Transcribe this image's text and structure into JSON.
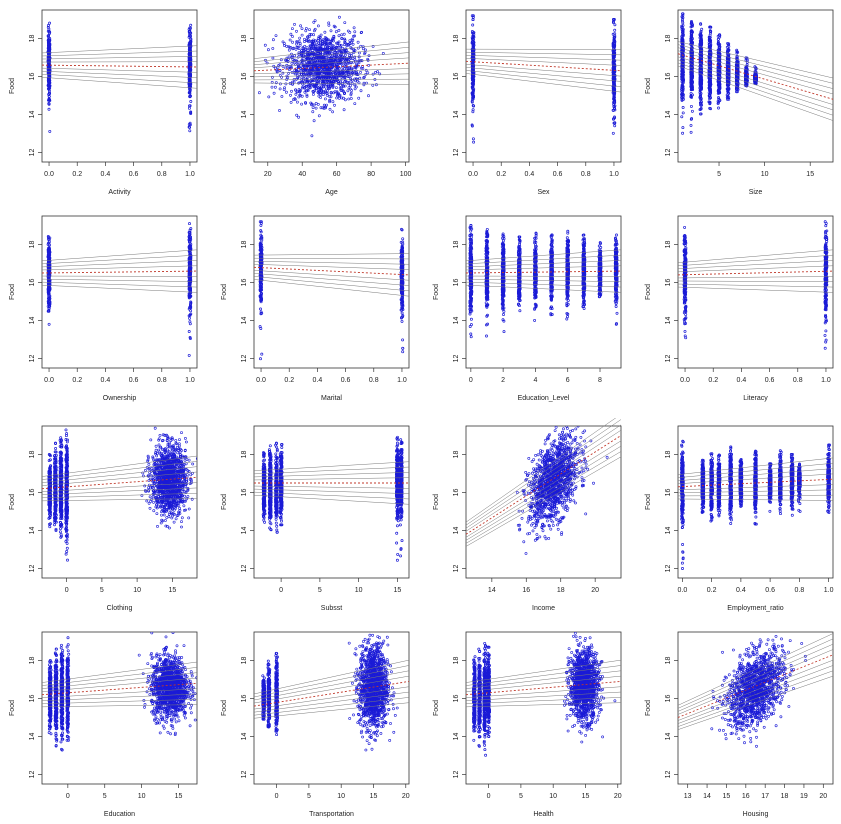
{
  "chart_data": [
    {
      "type": "scatter",
      "xlabel": "Activity",
      "ylabel": "Food",
      "xlim": [
        -0.05,
        1.05
      ],
      "ylim": [
        11.5,
        19.5
      ],
      "xticks": [
        "0.0",
        "0.2",
        "0.4",
        "0.6",
        "0.8",
        "1.0"
      ],
      "xtick_values": [
        0,
        0.2,
        0.4,
        0.6,
        0.8,
        1.0
      ],
      "yticks": [
        "12",
        "14",
        "16",
        "18"
      ],
      "ytick_values": [
        12,
        14,
        16,
        18
      ],
      "clusters": [
        {
          "x": 0,
          "y": 16.6,
          "ymin": 11.9,
          "ymax": 18.9,
          "shape": "column"
        },
        {
          "x": 1,
          "y": 16.5,
          "ymin": 12.2,
          "ymax": 18.7,
          "shape": "column"
        }
      ],
      "fit_left": 16.6,
      "fit_right": 16.5
    },
    {
      "type": "scatter",
      "xlabel": "Age",
      "ylabel": "Food",
      "xlim": [
        12,
        102
      ],
      "ylim": [
        11.5,
        19.5
      ],
      "xticks": [
        "20",
        "40",
        "60",
        "80",
        "100"
      ],
      "xtick_values": [
        20,
        40,
        60,
        80,
        100
      ],
      "yticks": [
        "12",
        "14",
        "16",
        "18"
      ],
      "ytick_values": [
        12,
        14,
        16,
        18
      ],
      "clusters": [
        {
          "x": 52,
          "y": 16.5,
          "xspread": 20,
          "yspread": 0.9,
          "shape": "blob"
        }
      ],
      "fit_left": 16.3,
      "fit_right": 16.7
    },
    {
      "type": "scatter",
      "xlabel": "Sex",
      "ylabel": "Food",
      "xlim": [
        -0.05,
        1.05
      ],
      "ylim": [
        11.5,
        19.5
      ],
      "xticks": [
        "0.0",
        "0.2",
        "0.4",
        "0.6",
        "0.8",
        "1.0"
      ],
      "xtick_values": [
        0,
        0.2,
        0.4,
        0.6,
        0.8,
        1.0
      ],
      "yticks": [
        "12",
        "14",
        "16",
        "18"
      ],
      "ytick_values": [
        12,
        14,
        16,
        18
      ],
      "clusters": [
        {
          "x": 0,
          "y": 16.7,
          "ymin": 12.4,
          "ymax": 19.2,
          "shape": "column"
        },
        {
          "x": 1,
          "y": 16.3,
          "ymin": 11.8,
          "ymax": 19.0,
          "shape": "column"
        }
      ],
      "fit_left": 16.8,
      "fit_right": 16.3
    },
    {
      "type": "scatter",
      "xlabel": "Size",
      "ylabel": "Food",
      "xlim": [
        0.5,
        17.5
      ],
      "ylim": [
        11.5,
        19.5
      ],
      "xticks": [
        "5",
        "10",
        "15"
      ],
      "xtick_values": [
        5,
        10,
        15
      ],
      "yticks": [
        "12",
        "14",
        "16",
        "18"
      ],
      "ytick_values": [
        12,
        14,
        16,
        18
      ],
      "clusters": [
        {
          "x": 1,
          "y": 16.8,
          "ymin": 12.5,
          "ymax": 19.3,
          "shape": "column"
        },
        {
          "x": 2,
          "y": 16.7,
          "ymin": 13,
          "ymax": 19.1,
          "shape": "column"
        },
        {
          "x": 3,
          "y": 16.6,
          "ymin": 13.2,
          "ymax": 18.9,
          "shape": "column"
        },
        {
          "x": 4,
          "y": 16.5,
          "ymin": 13.8,
          "ymax": 18.6,
          "shape": "column"
        },
        {
          "x": 5,
          "y": 16.3,
          "ymin": 14.2,
          "ymax": 18.2,
          "shape": "column"
        },
        {
          "x": 6,
          "y": 16.2,
          "ymin": 14.8,
          "ymax": 17.8,
          "shape": "column"
        },
        {
          "x": 7,
          "y": 16.1,
          "ymin": 15.2,
          "ymax": 17.4,
          "shape": "column"
        },
        {
          "x": 8,
          "y": 16.0,
          "ymin": 15.5,
          "ymax": 17.0,
          "shape": "column"
        },
        {
          "x": 9,
          "y": 15.9,
          "ymin": 15.6,
          "ymax": 16.6,
          "shape": "column"
        }
      ],
      "fit_left": 17.2,
      "fit_right": 14.8
    },
    {
      "type": "scatter",
      "xlabel": "Ownership",
      "ylabel": "Food",
      "xlim": [
        -0.05,
        1.05
      ],
      "ylim": [
        11.5,
        19.5
      ],
      "xticks": [
        "0.0",
        "0.2",
        "0.4",
        "0.6",
        "0.8",
        "1.0"
      ],
      "xtick_values": [
        0,
        0.2,
        0.4,
        0.6,
        0.8,
        1.0
      ],
      "yticks": [
        "12",
        "14",
        "16",
        "18"
      ],
      "ytick_values": [
        12,
        14,
        16,
        18
      ],
      "clusters": [
        {
          "x": 0,
          "y": 16.5,
          "ymin": 13.8,
          "ymax": 18.6,
          "shape": "column"
        },
        {
          "x": 1,
          "y": 16.6,
          "ymin": 11.9,
          "ymax": 19.1,
          "shape": "column"
        }
      ],
      "fit_left": 16.5,
      "fit_right": 16.6
    },
    {
      "type": "scatter",
      "xlabel": "Marital",
      "ylabel": "Food",
      "xlim": [
        -0.05,
        1.05
      ],
      "ylim": [
        11.5,
        19.5
      ],
      "xticks": [
        "0.0",
        "0.2",
        "0.4",
        "0.6",
        "0.8",
        "1.0"
      ],
      "xtick_values": [
        0,
        0.2,
        0.4,
        0.6,
        0.8,
        1.0
      ],
      "yticks": [
        "12",
        "14",
        "16",
        "18"
      ],
      "ytick_values": [
        12,
        14,
        16,
        18
      ],
      "clusters": [
        {
          "x": 0,
          "y": 16.8,
          "ymin": 11.8,
          "ymax": 19.2,
          "shape": "column"
        },
        {
          "x": 1,
          "y": 16.4,
          "ymin": 12.2,
          "ymax": 18.8,
          "shape": "column"
        }
      ],
      "fit_left": 16.8,
      "fit_right": 16.4
    },
    {
      "type": "scatter",
      "xlabel": "Education_Level",
      "ylabel": "Food",
      "xlim": [
        -0.3,
        9.3
      ],
      "ylim": [
        11.5,
        19.5
      ],
      "xticks": [
        "0",
        "2",
        "4",
        "6",
        "8"
      ],
      "xtick_values": [
        0,
        2,
        4,
        6,
        8
      ],
      "yticks": [
        "12",
        "14",
        "16",
        "18"
      ],
      "ytick_values": [
        12,
        14,
        16,
        18
      ],
      "clusters": [
        {
          "x": 0,
          "y": 16.5,
          "ymin": 12.1,
          "ymax": 19.0,
          "shape": "column"
        },
        {
          "x": 1,
          "y": 16.5,
          "ymin": 13,
          "ymax": 18.9,
          "shape": "column"
        },
        {
          "x": 2,
          "y": 16.5,
          "ymin": 12.3,
          "ymax": 18.7,
          "shape": "column"
        },
        {
          "x": 3,
          "y": 16.5,
          "ymin": 14.5,
          "ymax": 18.4,
          "shape": "column"
        },
        {
          "x": 4,
          "y": 16.5,
          "ymin": 14,
          "ymax": 18.6,
          "shape": "column"
        },
        {
          "x": 5,
          "y": 16.5,
          "ymin": 14.3,
          "ymax": 18.5,
          "shape": "column"
        },
        {
          "x": 6,
          "y": 16.6,
          "ymin": 13.8,
          "ymax": 18.7,
          "shape": "column"
        },
        {
          "x": 7,
          "y": 16.6,
          "ymin": 14.3,
          "ymax": 18.6,
          "shape": "column"
        },
        {
          "x": 8,
          "y": 16.6,
          "ymin": 14.8,
          "ymax": 18.1,
          "shape": "column"
        },
        {
          "x": 9,
          "y": 16.6,
          "ymin": 13.8,
          "ymax": 18.5,
          "shape": "column"
        }
      ],
      "fit_left": 16.5,
      "fit_right": 16.6
    },
    {
      "type": "scatter",
      "xlabel": "Literacy",
      "ylabel": "Food",
      "xlim": [
        -0.05,
        1.05
      ],
      "ylim": [
        11.5,
        19.5
      ],
      "xticks": [
        "0.0",
        "0.2",
        "0.4",
        "0.6",
        "0.8",
        "1.0"
      ],
      "xtick_values": [
        0,
        0.2,
        0.4,
        0.6,
        0.8,
        1.0
      ],
      "yticks": [
        "12",
        "14",
        "16",
        "18"
      ],
      "ytick_values": [
        12,
        14,
        16,
        18
      ],
      "clusters": [
        {
          "x": 0,
          "y": 16.4,
          "ymin": 12.8,
          "ymax": 18.9,
          "shape": "column"
        },
        {
          "x": 1,
          "y": 16.6,
          "ymin": 12.0,
          "ymax": 19.2,
          "shape": "column"
        }
      ],
      "fit_left": 16.4,
      "fit_right": 16.6
    },
    {
      "type": "scatter",
      "xlabel": "Clothing",
      "ylabel": "Food",
      "xlim": [
        -3.5,
        18.5
      ],
      "ylim": [
        11.5,
        19.5
      ],
      "xticks": [
        "0",
        "5",
        "10",
        "15"
      ],
      "xtick_values": [
        0,
        5,
        10,
        15
      ],
      "yticks": [
        "12",
        "14",
        "16",
        "18"
      ],
      "ytick_values": [
        12,
        14,
        16,
        18
      ],
      "clusters": [
        {
          "x": -2.4,
          "y": 16.1,
          "ymin": 14.2,
          "ymax": 18.0,
          "shape": "column"
        },
        {
          "x": -1.6,
          "y": 16.2,
          "ymin": 14,
          "ymax": 18.6,
          "shape": "column"
        },
        {
          "x": -0.8,
          "y": 16.2,
          "ymin": 13.5,
          "ymax": 18.9,
          "shape": "column"
        },
        {
          "x": 0,
          "y": 16.3,
          "ymin": 12.0,
          "ymax": 19.3,
          "shape": "column"
        },
        {
          "x": 14.5,
          "y": 16.7,
          "xspread": 2.2,
          "yspread": 0.9,
          "shape": "blob"
        }
      ],
      "fit_left": 16.2,
      "fit_right": 16.8
    },
    {
      "type": "scatter",
      "xlabel": "Subsst",
      "ylabel": "Food",
      "xlim": [
        -3.5,
        16.5
      ],
      "ylim": [
        11.5,
        19.5
      ],
      "xticks": [
        "0",
        "5",
        "10",
        "15"
      ],
      "xtick_values": [
        0,
        5,
        10,
        15
      ],
      "yticks": [
        "12",
        "14",
        "16",
        "18"
      ],
      "ytick_values": [
        12,
        14,
        16,
        18
      ],
      "clusters": [
        {
          "x": -2.2,
          "y": 16.2,
          "ymin": 14.3,
          "ymax": 18.1,
          "shape": "column"
        },
        {
          "x": -1.4,
          "y": 16.3,
          "ymin": 14,
          "ymax": 18.5,
          "shape": "column"
        },
        {
          "x": -0.6,
          "y": 16.3,
          "ymin": 13.8,
          "ymax": 18.6,
          "shape": "column"
        },
        {
          "x": 0,
          "y": 16.4,
          "ymin": 14.3,
          "ymax": 18.8,
          "shape": "column"
        },
        {
          "x": 15,
          "y": 16.6,
          "ymin": 11.9,
          "ymax": 19.0,
          "shape": "column"
        },
        {
          "x": 15.5,
          "y": 16.5,
          "ymin": 12.2,
          "ymax": 18.8,
          "shape": "column"
        }
      ],
      "fit_left": 16.5,
      "fit_right": 16.5
    },
    {
      "type": "scatter",
      "xlabel": "Income",
      "ylabel": "Food",
      "xlim": [
        12.5,
        21.5
      ],
      "ylim": [
        11.5,
        19.5
      ],
      "xticks": [
        "14",
        "16",
        "18",
        "20"
      ],
      "xtick_values": [
        14,
        16,
        18,
        20
      ],
      "yticks": [
        "12",
        "14",
        "16",
        "18"
      ],
      "ytick_values": [
        12,
        14,
        16,
        18
      ],
      "clusters": [
        {
          "x": 17.6,
          "y": 16.6,
          "xspread": 1.3,
          "yspread": 1.0,
          "shape": "blob",
          "tilt": 0.7
        }
      ],
      "fit_left": 13.8,
      "fit_right": 19.0
    },
    {
      "type": "scatter",
      "xlabel": "Employment_ratio",
      "ylabel": "Food",
      "xlim": [
        -0.03,
        1.03
      ],
      "ylim": [
        11.5,
        19.5
      ],
      "xticks": [
        "0.0",
        "0.2",
        "0.4",
        "0.6",
        "0.8",
        "1.0"
      ],
      "xtick_values": [
        0,
        0.2,
        0.4,
        0.6,
        0.8,
        1.0
      ],
      "yticks": [
        "12",
        "14",
        "16",
        "18"
      ],
      "ytick_values": [
        12,
        14,
        16,
        18
      ],
      "clusters": [
        {
          "x": 0,
          "y": 16.3,
          "ymin": 12.0,
          "ymax": 18.7,
          "shape": "column"
        },
        {
          "x": 0.14,
          "y": 16.4,
          "ymin": 14.9,
          "ymax": 17.7,
          "shape": "column"
        },
        {
          "x": 0.2,
          "y": 16.4,
          "ymin": 14.5,
          "ymax": 18.1,
          "shape": "column"
        },
        {
          "x": 0.25,
          "y": 16.4,
          "ymin": 14.6,
          "ymax": 18.0,
          "shape": "column"
        },
        {
          "x": 0.33,
          "y": 16.5,
          "ymin": 14.3,
          "ymax": 18.4,
          "shape": "column"
        },
        {
          "x": 0.4,
          "y": 16.5,
          "ymin": 14.9,
          "ymax": 17.8,
          "shape": "column"
        },
        {
          "x": 0.5,
          "y": 16.5,
          "ymin": 14.2,
          "ymax": 18.3,
          "shape": "column"
        },
        {
          "x": 0.6,
          "y": 16.5,
          "ymin": 15,
          "ymax": 17.6,
          "shape": "column"
        },
        {
          "x": 0.67,
          "y": 16.6,
          "ymin": 14.4,
          "ymax": 18.2,
          "shape": "column"
        },
        {
          "x": 0.75,
          "y": 16.6,
          "ymin": 14.8,
          "ymax": 18.0,
          "shape": "column"
        },
        {
          "x": 0.8,
          "y": 16.6,
          "ymin": 15,
          "ymax": 17.5,
          "shape": "column"
        },
        {
          "x": 1,
          "y": 16.7,
          "ymin": 14.6,
          "ymax": 18.5,
          "shape": "column"
        }
      ],
      "fit_left": 16.3,
      "fit_right": 16.7
    },
    {
      "type": "scatter",
      "xlabel": "Education",
      "ylabel": "Food",
      "xlim": [
        -3.5,
        17.5
      ],
      "ylim": [
        11.5,
        19.5
      ],
      "xticks": [
        "0",
        "5",
        "10",
        "15"
      ],
      "xtick_values": [
        0,
        5,
        10,
        15
      ],
      "yticks": [
        "12",
        "14",
        "16",
        "18"
      ],
      "ytick_values": [
        12,
        14,
        16,
        18
      ],
      "clusters": [
        {
          "x": -2.4,
          "y": 16.1,
          "ymin": 14,
          "ymax": 18.0,
          "shape": "column"
        },
        {
          "x": -1.6,
          "y": 16.2,
          "ymin": 13.5,
          "ymax": 18.6,
          "shape": "column"
        },
        {
          "x": -0.8,
          "y": 16.2,
          "ymin": 12.2,
          "ymax": 18.8,
          "shape": "column"
        },
        {
          "x": 0,
          "y": 16.3,
          "ymin": 13.8,
          "ymax": 19.2,
          "shape": "column"
        },
        {
          "x": 13.8,
          "y": 16.6,
          "xspread": 2.2,
          "yspread": 0.8,
          "shape": "blob"
        }
      ],
      "fit_left": 16.2,
      "fit_right": 16.8
    },
    {
      "type": "scatter",
      "xlabel": "Transportation",
      "ylabel": "Food",
      "xlim": [
        -3.5,
        20.5
      ],
      "ylim": [
        11.5,
        19.5
      ],
      "xticks": [
        "0",
        "5",
        "10",
        "15",
        "20"
      ],
      "xtick_values": [
        0,
        5,
        10,
        15,
        20
      ],
      "yticks": [
        "12",
        "14",
        "16",
        "18"
      ],
      "ytick_values": [
        12,
        14,
        16,
        18
      ],
      "clusters": [
        {
          "x": -2,
          "y": 16.0,
          "ymin": 14.8,
          "ymax": 17.4,
          "shape": "column"
        },
        {
          "x": -1.2,
          "y": 16.1,
          "ymin": 14.5,
          "ymax": 18.0,
          "shape": "column"
        },
        {
          "x": 0,
          "y": 16.2,
          "ymin": 14,
          "ymax": 19.0,
          "shape": "column"
        },
        {
          "x": 15,
          "y": 16.6,
          "xspread": 2.0,
          "yspread": 1.1,
          "shape": "blob"
        }
      ],
      "fit_left": 15.6,
      "fit_right": 16.9
    },
    {
      "type": "scatter",
      "xlabel": "Health",
      "ylabel": "Food",
      "xlim": [
        -3.5,
        20.5
      ],
      "ylim": [
        11.5,
        19.5
      ],
      "xticks": [
        "0",
        "5",
        "10",
        "15",
        "20"
      ],
      "xtick_values": [
        0,
        5,
        10,
        15,
        20
      ],
      "yticks": [
        "12",
        "14",
        "16",
        "18"
      ],
      "ytick_values": [
        12,
        14,
        16,
        18
      ],
      "clusters": [
        {
          "x": -2.2,
          "y": 16.1,
          "ymin": 13.8,
          "ymax": 18.2,
          "shape": "column"
        },
        {
          "x": -1.4,
          "y": 16.2,
          "ymin": 13.2,
          "ymax": 18.6,
          "shape": "column"
        },
        {
          "x": -0.6,
          "y": 16.2,
          "ymin": 12.5,
          "ymax": 18.9,
          "shape": "column"
        },
        {
          "x": 0,
          "y": 16.3,
          "ymin": 14,
          "ymax": 18.7,
          "shape": "column"
        },
        {
          "x": 14.8,
          "y": 16.7,
          "xspread": 2.0,
          "yspread": 0.9,
          "shape": "blob"
        }
      ],
      "fit_left": 16.2,
      "fit_right": 16.9
    },
    {
      "type": "scatter",
      "xlabel": "Housing",
      "ylabel": "Food",
      "xlim": [
        12.5,
        20.5
      ],
      "ylim": [
        11.5,
        19.5
      ],
      "xticks": [
        "13",
        "14",
        "15",
        "16",
        "17",
        "18",
        "19",
        "20"
      ],
      "xtick_values": [
        13,
        14,
        15,
        16,
        17,
        18,
        19,
        20
      ],
      "yticks": [
        "12",
        "14",
        "16",
        "18"
      ],
      "ytick_values": [
        12,
        14,
        16,
        18
      ],
      "clusters": [
        {
          "x": 16.5,
          "y": 16.5,
          "xspread": 1.3,
          "yspread": 0.9,
          "shape": "blob",
          "tilt": 0.55
        }
      ],
      "fit_left": 15.0,
      "fit_right": 18.3
    }
  ],
  "colors": {
    "points": "#1b1bd6",
    "fit_lines": "#7a7a7a",
    "fit_center": "#c0392b",
    "frame": "#333333"
  }
}
